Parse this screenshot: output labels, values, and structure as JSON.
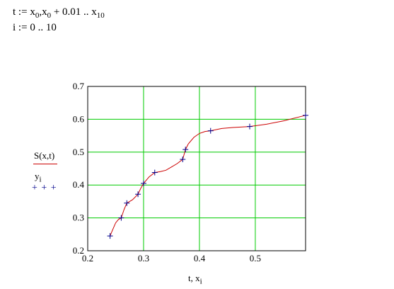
{
  "formulas": {
    "line1": {
      "lhs": "t",
      "assign": ":=",
      "a": "x",
      "a_sub": "0",
      "sep": ",",
      "b": "x",
      "b_sub": "0",
      "plus": "+ 0.01",
      "range": "..",
      "c": "x",
      "c_sub": "10"
    },
    "line2": {
      "lhs": "i",
      "assign": ":=",
      "range": "0 .. 10"
    }
  },
  "chart_data": {
    "type": "line",
    "xlabel": "t, x",
    "xlabel_sub": "i",
    "ylabel": "",
    "xlim": [
      0.2,
      0.59
    ],
    "ylim": [
      0.2,
      0.7
    ],
    "grid": true,
    "xticks": [
      "0.2",
      "0.3",
      "0.4",
      "0.5"
    ],
    "xtick_values": [
      0.2,
      0.3,
      0.4,
      0.5
    ],
    "yticks": [
      "0.2",
      "0.3",
      "0.4",
      "0.5",
      "0.6",
      "0.7"
    ],
    "ytick_values": [
      0.2,
      0.3,
      0.4,
      0.5,
      0.6,
      0.7
    ],
    "legend": {
      "curve": {
        "label": "S(x,t)",
        "color": "#cc0000"
      },
      "points": {
        "label": "y",
        "label_sub": "i",
        "marker": "+ + +",
        "color": "#00008b"
      }
    },
    "series": [
      {
        "kind": "curve",
        "color": "#cc0000",
        "x": [
          0.24,
          0.245,
          0.25,
          0.255,
          0.26,
          0.265,
          0.27,
          0.28,
          0.29,
          0.295,
          0.3,
          0.31,
          0.32,
          0.33,
          0.34,
          0.35,
          0.36,
          0.37,
          0.375,
          0.38,
          0.39,
          0.4,
          0.41,
          0.42,
          0.44,
          0.46,
          0.49,
          0.52,
          0.55,
          0.59
        ],
        "y": [
          0.245,
          0.265,
          0.285,
          0.295,
          0.3,
          0.325,
          0.345,
          0.355,
          0.372,
          0.39,
          0.405,
          0.425,
          0.438,
          0.441,
          0.445,
          0.455,
          0.465,
          0.478,
          0.508,
          0.525,
          0.545,
          0.557,
          0.563,
          0.565,
          0.572,
          0.575,
          0.578,
          0.585,
          0.595,
          0.612
        ]
      },
      {
        "kind": "points",
        "color": "#00008b",
        "x": [
          0.24,
          0.26,
          0.27,
          0.29,
          0.3,
          0.32,
          0.37,
          0.375,
          0.42,
          0.49,
          0.59
        ],
        "y": [
          0.245,
          0.3,
          0.345,
          0.372,
          0.405,
          0.438,
          0.478,
          0.508,
          0.565,
          0.578,
          0.612
        ]
      }
    ]
  }
}
